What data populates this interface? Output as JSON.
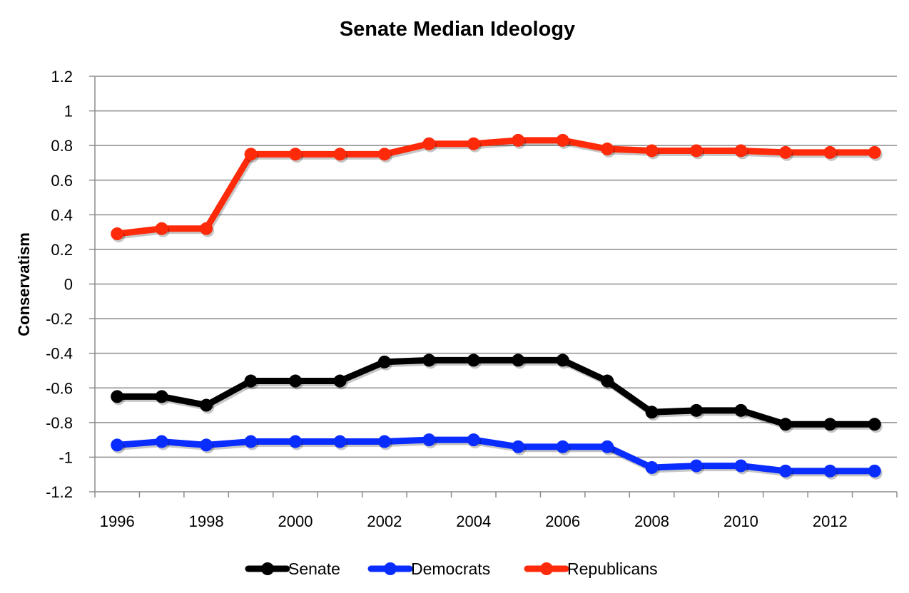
{
  "chart_data": {
    "type": "line",
    "title": "Senate Median Ideology",
    "xlabel": "",
    "ylabel": "Conservatism",
    "x": [
      1996,
      1997,
      1998,
      1999,
      2000,
      2001,
      2002,
      2003,
      2004,
      2005,
      2006,
      2007,
      2008,
      2009,
      2010,
      2011,
      2012,
      2013
    ],
    "x_tick_labels": [
      "1996",
      "1998",
      "2000",
      "2002",
      "2004",
      "2006",
      "2008",
      "2010",
      "2012"
    ],
    "x_tick_values": [
      1996,
      1998,
      2000,
      2002,
      2004,
      2006,
      2008,
      2010,
      2012
    ],
    "y_tick_labels": [
      "1.2",
      "1",
      "0.8",
      "0.6",
      "0.4",
      "0.2",
      "0",
      "-0.2",
      "-0.4",
      "-0.6",
      "-0.8",
      "-1",
      "-1.2"
    ],
    "y_tick_values": [
      1.2,
      1,
      0.8,
      0.6,
      0.4,
      0.2,
      0,
      -0.2,
      -0.4,
      -0.6,
      -0.8,
      -1,
      -1.2
    ],
    "ylim": [
      -1.2,
      1.2
    ],
    "grid": true,
    "legend_position": "bottom",
    "series": [
      {
        "name": "Senate",
        "color": "#000000",
        "values": [
          -0.65,
          -0.65,
          -0.7,
          -0.56,
          -0.56,
          -0.56,
          -0.45,
          -0.44,
          -0.44,
          -0.44,
          -0.44,
          -0.56,
          -0.74,
          -0.73,
          -0.73,
          -0.81,
          -0.81,
          -0.81
        ]
      },
      {
        "name": "Democrats",
        "color": "#0a2dff",
        "values": [
          -0.93,
          -0.91,
          -0.93,
          -0.91,
          -0.91,
          -0.91,
          -0.91,
          -0.9,
          -0.9,
          -0.94,
          -0.94,
          -0.94,
          -1.06,
          -1.05,
          -1.05,
          -1.08,
          -1.08,
          -1.08
        ]
      },
      {
        "name": "Republicans",
        "color": "#ff2a0a",
        "values": [
          0.29,
          0.32,
          0.32,
          0.75,
          0.75,
          0.75,
          0.75,
          0.81,
          0.81,
          0.83,
          0.83,
          0.78,
          0.77,
          0.77,
          0.77,
          0.76,
          0.76,
          0.76
        ]
      }
    ]
  }
}
